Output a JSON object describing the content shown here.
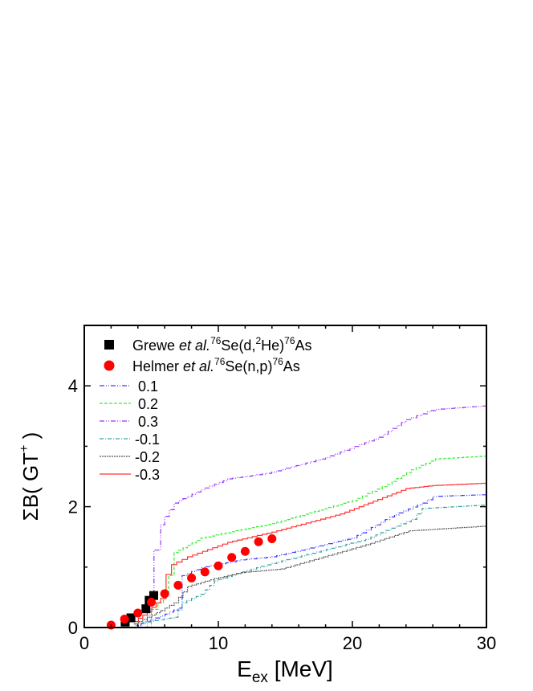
{
  "chart_data": {
    "type": "line",
    "xlabel": {
      "main": "E",
      "sub": "ex",
      "rest": " [MeV]"
    },
    "ylabel": {
      "main": "ΣB( GT",
      "sup": "+",
      "rest": " )"
    },
    "xlim": [
      0,
      30
    ],
    "ylim": [
      0,
      5
    ],
    "xticks": [
      0,
      10,
      20,
      30
    ],
    "yticks": [
      0,
      2,
      4
    ],
    "grid": false,
    "legend_position": "top-left",
    "scatter_series": [
      {
        "name_parts": {
          "author": "Grewe ",
          "etal": "et al.",
          "reaction": [
            {
              "sup": "76"
            },
            {
              "t": "Se(d,"
            },
            {
              "sup": "2"
            },
            {
              "t": "He)"
            },
            {
              "sup": "76"
            },
            {
              "t": "As"
            }
          ]
        },
        "marker": "square",
        "color": "#000000",
        "x": [
          3.05,
          3.48,
          4.6,
          4.84,
          5.18
        ],
        "y": [
          0.09,
          0.16,
          0.31,
          0.45,
          0.53
        ]
      },
      {
        "name_parts": {
          "author": "Helmer ",
          "etal": "et al.",
          "reaction": [
            {
              "sup": "76"
            },
            {
              "t": "Se(n,p)"
            },
            {
              "sup": "76"
            },
            {
              "t": "As"
            }
          ]
        },
        "marker": "circle",
        "color": "#ff0000",
        "x": [
          2,
          3,
          4,
          5,
          6,
          7,
          8,
          9,
          10,
          11,
          12,
          13,
          14
        ],
        "y": [
          0.04,
          0.14,
          0.24,
          0.42,
          0.56,
          0.7,
          0.82,
          0.92,
          1.02,
          1.16,
          1.26,
          1.42,
          1.47
        ]
      }
    ],
    "series": [
      {
        "name": "0.1",
        "color": "#3a3aff",
        "dash": "6,2,1,2,1,2",
        "x": [
          3.5,
          5.7,
          7.0,
          7.3,
          8.7,
          11.7,
          14.0,
          20.0,
          22.8,
          25.2,
          26.0,
          30
        ],
        "y": [
          0,
          0.19,
          0.32,
          0.86,
          0.99,
          1.12,
          1.17,
          1.48,
          1.83,
          2.06,
          2.17,
          2.2
        ]
      },
      {
        "name": "0.2",
        "color": "#33ee33",
        "dash": "4,2",
        "x": [
          4.5,
          5.0,
          5.5,
          5.9,
          6.3,
          6.7,
          8.7,
          11.7,
          14.0,
          20.0,
          22.6,
          24.4,
          26.2,
          30
        ],
        "y": [
          0,
          0.3,
          0.41,
          0.55,
          0.86,
          1.24,
          1.48,
          1.62,
          1.72,
          2.1,
          2.37,
          2.61,
          2.79,
          2.84
        ]
      },
      {
        "name": "0.3",
        "color": "#9933ff",
        "dash": "6,2,1,2,1,2",
        "x": [
          4.3,
          4.7,
          4.9,
          5.1,
          5.2,
          5.7,
          6.0,
          6.7,
          8.7,
          10.7,
          13.6,
          18.0,
          22.0,
          24.0,
          25.6,
          26.2,
          30
        ],
        "y": [
          0,
          0.2,
          0.5,
          0.53,
          1.28,
          1.7,
          1.84,
          2.06,
          2.28,
          2.46,
          2.55,
          2.81,
          3.15,
          3.44,
          3.57,
          3.61,
          3.67
        ]
      },
      {
        "name": "-0.1",
        "color": "#33a0a0",
        "dash": "5,2,1,2",
        "x": [
          3.7,
          6.7,
          7.3,
          8.7,
          9.7,
          11.7,
          14.0,
          21.0,
          24.4,
          25.2,
          30
        ],
        "y": [
          0.06,
          0.17,
          0.41,
          0.55,
          0.77,
          0.92,
          1.06,
          1.46,
          1.79,
          1.97,
          2.03
        ]
      },
      {
        "name": "-0.2",
        "color": "#555555",
        "dash": "2,1",
        "x": [
          3.7,
          5.7,
          6.7,
          7.7,
          9.7,
          11.7,
          14.7,
          21.0,
          24.2,
          30
        ],
        "y": [
          0.06,
          0.28,
          0.41,
          0.68,
          0.81,
          0.91,
          0.97,
          1.37,
          1.6,
          1.68
        ]
      },
      {
        "name": "-0.3",
        "color": "#ff3333",
        "dash": "",
        "x": [
          3.7,
          4.7,
          5.7,
          6.1,
          6.5,
          7.7,
          10.7,
          14.0,
          19.1,
          24.0,
          26.0,
          30
        ],
        "y": [
          0.1,
          0.26,
          0.48,
          0.88,
          1.04,
          1.17,
          1.41,
          1.58,
          1.88,
          2.3,
          2.35,
          2.39
        ]
      }
    ]
  }
}
